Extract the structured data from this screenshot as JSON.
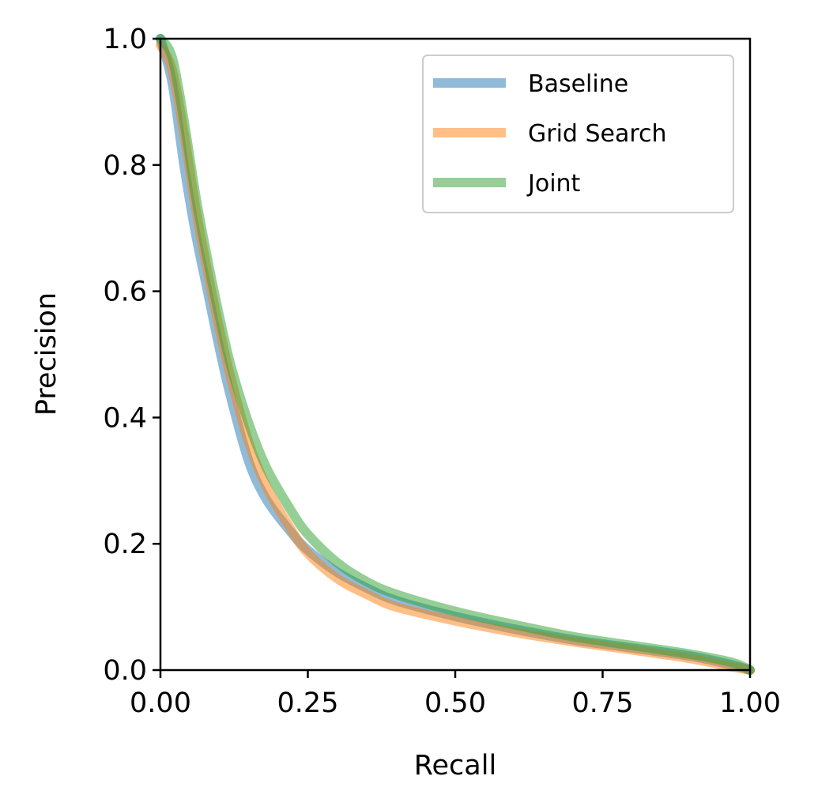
{
  "chart_data": {
    "type": "line",
    "title": "",
    "xlabel": "Recall",
    "ylabel": "Precision",
    "xlim": [
      0.0,
      1.0
    ],
    "ylim": [
      0.0,
      1.0
    ],
    "xticks": [
      0.0,
      0.25,
      0.5,
      0.75,
      1.0
    ],
    "xtick_labels": [
      "0.00",
      "0.25",
      "0.50",
      "0.75",
      "1.00"
    ],
    "yticks": [
      0.0,
      0.2,
      0.4,
      0.6,
      0.8,
      1.0
    ],
    "ytick_labels": [
      "0.0",
      "0.2",
      "0.4",
      "0.6",
      "0.8",
      "1.0"
    ],
    "grid": false,
    "legend_position": "top-right",
    "series": [
      {
        "name": "Baseline",
        "color": "#1f77b4",
        "points": [
          [
            0.0,
            1.0
          ],
          [
            0.02,
            0.93
          ],
          [
            0.04,
            0.8
          ],
          [
            0.06,
            0.69
          ],
          [
            0.08,
            0.6
          ],
          [
            0.1,
            0.51
          ],
          [
            0.12,
            0.43
          ],
          [
            0.15,
            0.33
          ],
          [
            0.18,
            0.27
          ],
          [
            0.22,
            0.22
          ],
          [
            0.25,
            0.19
          ],
          [
            0.3,
            0.155
          ],
          [
            0.35,
            0.13
          ],
          [
            0.4,
            0.11
          ],
          [
            0.5,
            0.085
          ],
          [
            0.6,
            0.065
          ],
          [
            0.7,
            0.048
          ],
          [
            0.8,
            0.035
          ],
          [
            0.9,
            0.022
          ],
          [
            0.97,
            0.008
          ],
          [
            1.0,
            0.0
          ]
        ]
      },
      {
        "name": "Grid Search",
        "color": "#ff7f0e",
        "points": [
          [
            0.0,
            0.99
          ],
          [
            0.02,
            0.95
          ],
          [
            0.04,
            0.85
          ],
          [
            0.06,
            0.73
          ],
          [
            0.08,
            0.63
          ],
          [
            0.1,
            0.54
          ],
          [
            0.12,
            0.46
          ],
          [
            0.15,
            0.36
          ],
          [
            0.18,
            0.29
          ],
          [
            0.22,
            0.225
          ],
          [
            0.25,
            0.185
          ],
          [
            0.3,
            0.145
          ],
          [
            0.35,
            0.12
          ],
          [
            0.4,
            0.1
          ],
          [
            0.5,
            0.078
          ],
          [
            0.6,
            0.06
          ],
          [
            0.7,
            0.045
          ],
          [
            0.8,
            0.032
          ],
          [
            0.9,
            0.018
          ],
          [
            0.97,
            0.005
          ],
          [
            1.0,
            0.0
          ]
        ]
      },
      {
        "name": "Joint",
        "color": "#2ca02c",
        "points": [
          [
            0.0,
            1.0
          ],
          [
            0.02,
            0.97
          ],
          [
            0.04,
            0.87
          ],
          [
            0.06,
            0.75
          ],
          [
            0.08,
            0.65
          ],
          [
            0.1,
            0.56
          ],
          [
            0.12,
            0.48
          ],
          [
            0.15,
            0.39
          ],
          [
            0.18,
            0.32
          ],
          [
            0.22,
            0.255
          ],
          [
            0.25,
            0.215
          ],
          [
            0.3,
            0.17
          ],
          [
            0.35,
            0.14
          ],
          [
            0.4,
            0.12
          ],
          [
            0.5,
            0.093
          ],
          [
            0.6,
            0.072
          ],
          [
            0.7,
            0.053
          ],
          [
            0.8,
            0.039
          ],
          [
            0.9,
            0.025
          ],
          [
            0.97,
            0.012
          ],
          [
            1.0,
            0.0
          ]
        ]
      }
    ]
  }
}
